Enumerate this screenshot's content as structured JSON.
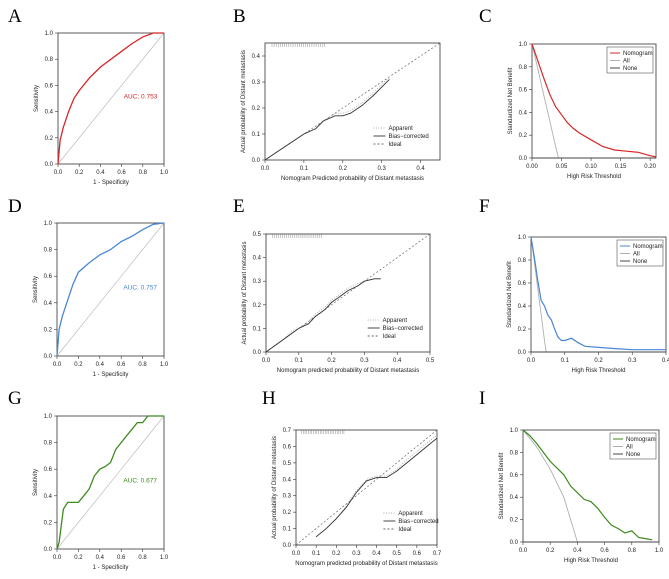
{
  "figure": {
    "panel_labels": [
      "A",
      "B",
      "C",
      "D",
      "E",
      "F",
      "G",
      "H",
      "I"
    ]
  },
  "colors": {
    "roc": [
      "#d62728",
      "#4a86d4",
      "#3c8a1e"
    ],
    "dca_model": [
      "#d62728",
      "#4a86d4",
      "#3c8a1e"
    ],
    "all": "#b0b0b0",
    "none": "#444444",
    "apparent": "#aaaaaa",
    "bias": "#333333",
    "ideal": "#666666"
  },
  "chart_data": [
    {
      "panel": "A",
      "type": "line",
      "subtype": "roc",
      "xlabel": "1 - Specificity",
      "ylabel": "Sensitivity",
      "xlim": [
        0,
        1
      ],
      "ylim": [
        0,
        1
      ],
      "xticks": [
        "0.0",
        "0.2",
        "0.4",
        "0.6",
        "0.8",
        "1.0"
      ],
      "yticks": [
        "0.0",
        "0.2",
        "0.4",
        "0.6",
        "0.8",
        "1.0"
      ],
      "annotation": "AUC: 0.753",
      "series": [
        {
          "name": "ROC",
          "x": [
            0,
            0.02,
            0.05,
            0.1,
            0.15,
            0.2,
            0.3,
            0.4,
            0.5,
            0.6,
            0.7,
            0.8,
            0.9,
            1
          ],
          "y": [
            0,
            0.18,
            0.28,
            0.4,
            0.5,
            0.56,
            0.66,
            0.74,
            0.8,
            0.86,
            0.92,
            0.97,
            1,
            1
          ]
        }
      ]
    },
    {
      "panel": "B",
      "type": "line",
      "subtype": "calibration",
      "xlabel": "Nomogram Predicted probability of Distant metastasis",
      "ylabel": "Actual probability of Distant metastasis",
      "xlim": [
        0,
        0.45
      ],
      "ylim": [
        0,
        0.45
      ],
      "xticks": [
        "0.0",
        "0.1",
        "0.2",
        "0.3",
        "0.4"
      ],
      "yticks": [
        "0.0",
        "0.1",
        "0.2",
        "0.3",
        "0.4"
      ],
      "legend": [
        "Apparent",
        "Bias−corrected",
        "Ideal"
      ],
      "series": [
        {
          "name": "Apparent",
          "x": [
            0,
            0.02,
            0.05,
            0.08,
            0.1,
            0.13,
            0.15,
            0.18,
            0.2,
            0.22,
            0.25,
            0.28,
            0.3,
            0.32
          ],
          "y": [
            0,
            0.02,
            0.05,
            0.08,
            0.1,
            0.12,
            0.15,
            0.18,
            0.18,
            0.19,
            0.22,
            0.26,
            0.29,
            0.32
          ]
        },
        {
          "name": "Bias-corrected",
          "x": [
            0,
            0.02,
            0.05,
            0.08,
            0.1,
            0.13,
            0.15,
            0.18,
            0.2,
            0.22,
            0.25,
            0.28,
            0.3,
            0.32
          ],
          "y": [
            0,
            0.02,
            0.05,
            0.08,
            0.1,
            0.12,
            0.15,
            0.17,
            0.17,
            0.18,
            0.21,
            0.25,
            0.28,
            0.31
          ]
        },
        {
          "name": "Ideal",
          "x": [
            0,
            0.45
          ],
          "y": [
            0,
            0.45
          ]
        }
      ]
    },
    {
      "panel": "C",
      "type": "line",
      "subtype": "decision_curve",
      "xlabel": "High Risk Threshold",
      "ylabel": "Standardized Net Benefit",
      "xlim": [
        0,
        0.21
      ],
      "ylim": [
        0,
        1
      ],
      "xticks": [
        "0.00",
        "0.05",
        "0.10",
        "0.15",
        "0.20"
      ],
      "yticks": [
        "0.0",
        "0.2",
        "0.4",
        "0.6",
        "0.8",
        "1.0"
      ],
      "legend": [
        "Nomogram",
        "All",
        "None"
      ],
      "series": [
        {
          "name": "Nomogram",
          "x": [
            0,
            0.01,
            0.02,
            0.03,
            0.04,
            0.05,
            0.06,
            0.07,
            0.08,
            0.1,
            0.12,
            0.14,
            0.16,
            0.18,
            0.2,
            0.21
          ],
          "y": [
            1,
            0.85,
            0.7,
            0.56,
            0.45,
            0.38,
            0.31,
            0.26,
            0.22,
            0.16,
            0.1,
            0.07,
            0.06,
            0.05,
            0.02,
            0.01
          ]
        },
        {
          "name": "All",
          "x": [
            0,
            0.01,
            0.02,
            0.03,
            0.04,
            0.045
          ],
          "y": [
            1,
            0.78,
            0.55,
            0.33,
            0.1,
            0
          ]
        },
        {
          "name": "None",
          "x": [
            0,
            0.21
          ],
          "y": [
            0,
            0
          ]
        }
      ]
    },
    {
      "panel": "D",
      "type": "line",
      "subtype": "roc",
      "xlabel": "1 - Specificity",
      "ylabel": "Sensitivity",
      "xlim": [
        0,
        1
      ],
      "ylim": [
        0,
        1
      ],
      "xticks": [
        "0.0",
        "0.2",
        "0.4",
        "0.6",
        "0.8",
        "1.0"
      ],
      "yticks": [
        "0.0",
        "0.2",
        "0.4",
        "0.6",
        "0.8",
        "1.0"
      ],
      "annotation": "AUC: 0.757",
      "series": [
        {
          "name": "ROC",
          "x": [
            0,
            0.02,
            0.05,
            0.1,
            0.15,
            0.2,
            0.3,
            0.4,
            0.5,
            0.6,
            0.7,
            0.8,
            0.9,
            1
          ],
          "y": [
            0,
            0.2,
            0.3,
            0.42,
            0.54,
            0.63,
            0.7,
            0.76,
            0.8,
            0.86,
            0.9,
            0.95,
            0.99,
            1
          ]
        }
      ]
    },
    {
      "panel": "E",
      "type": "line",
      "subtype": "calibration",
      "xlabel": "Nomogram predicted probability of Distant metastasis",
      "ylabel": "Actual probability of Distant metastasis",
      "xlim": [
        0,
        0.5
      ],
      "ylim": [
        0,
        0.5
      ],
      "xticks": [
        "0.0",
        "0.1",
        "0.2",
        "0.3",
        "0.4",
        "0.5"
      ],
      "yticks": [
        "0.0",
        "0.1",
        "0.2",
        "0.3",
        "0.4",
        "0.5"
      ],
      "legend": [
        "Apparent",
        "Bias−corrected",
        "Ideal"
      ],
      "series": [
        {
          "name": "Apparent",
          "x": [
            0,
            0.02,
            0.05,
            0.08,
            0.1,
            0.13,
            0.15,
            0.18,
            0.2,
            0.22,
            0.25,
            0.28,
            0.3,
            0.33,
            0.35
          ],
          "y": [
            0,
            0.02,
            0.05,
            0.09,
            0.1,
            0.13,
            0.16,
            0.19,
            0.22,
            0.24,
            0.27,
            0.29,
            0.3,
            0.31,
            0.31
          ]
        },
        {
          "name": "Bias-corrected",
          "x": [
            0,
            0.02,
            0.05,
            0.08,
            0.1,
            0.13,
            0.15,
            0.18,
            0.2,
            0.22,
            0.25,
            0.28,
            0.3,
            0.33,
            0.35
          ],
          "y": [
            0,
            0.02,
            0.05,
            0.08,
            0.1,
            0.12,
            0.15,
            0.18,
            0.21,
            0.23,
            0.26,
            0.28,
            0.3,
            0.31,
            0.31
          ]
        },
        {
          "name": "Ideal",
          "x": [
            0,
            0.5
          ],
          "y": [
            0,
            0.5
          ]
        }
      ]
    },
    {
      "panel": "F",
      "type": "line",
      "subtype": "decision_curve",
      "xlabel": "High Risk Threshold",
      "ylabel": "Standardized Net Benefit",
      "xlim": [
        0,
        0.4
      ],
      "ylim": [
        0,
        1
      ],
      "xticks": [
        "0.0",
        "0.1",
        "0.2",
        "0.3",
        "0.4"
      ],
      "yticks": [
        "0.0",
        "0.2",
        "0.4",
        "0.6",
        "0.8",
        "1.0"
      ],
      "legend": [
        "Nomogram",
        "All",
        "None"
      ],
      "series": [
        {
          "name": "Nomogram",
          "x": [
            0,
            0.01,
            0.02,
            0.03,
            0.04,
            0.05,
            0.06,
            0.07,
            0.08,
            0.09,
            0.1,
            0.12,
            0.14,
            0.16,
            0.2,
            0.25,
            0.3,
            0.35,
            0.4
          ],
          "y": [
            1,
            0.82,
            0.62,
            0.45,
            0.4,
            0.32,
            0.28,
            0.2,
            0.13,
            0.1,
            0.1,
            0.12,
            0.08,
            0.05,
            0.04,
            0.03,
            0.02,
            0.02,
            0.02
          ]
        },
        {
          "name": "All",
          "x": [
            0,
            0.01,
            0.02,
            0.03,
            0.04,
            0.045
          ],
          "y": [
            1,
            0.78,
            0.55,
            0.33,
            0.1,
            0
          ]
        },
        {
          "name": "None",
          "x": [
            0,
            0.4
          ],
          "y": [
            0,
            0
          ]
        }
      ]
    },
    {
      "panel": "G",
      "type": "line",
      "subtype": "roc",
      "xlabel": "1 - Specificity",
      "ylabel": "Sensitivity",
      "xlim": [
        0,
        1
      ],
      "ylim": [
        0,
        1
      ],
      "xticks": [
        "0.0",
        "0.2",
        "0.4",
        "0.6",
        "0.8",
        "1.0"
      ],
      "yticks": [
        "0.0",
        "0.2",
        "0.4",
        "0.6",
        "0.8",
        "1.0"
      ],
      "annotation": "AUC: 0.677",
      "series": [
        {
          "name": "ROC",
          "x": [
            0,
            0.02,
            0.04,
            0.06,
            0.1,
            0.2,
            0.25,
            0.3,
            0.35,
            0.4,
            0.45,
            0.5,
            0.55,
            0.6,
            0.65,
            0.7,
            0.75,
            0.8,
            0.85,
            0.9,
            1
          ],
          "y": [
            0,
            0.05,
            0.18,
            0.3,
            0.35,
            0.35,
            0.4,
            0.45,
            0.55,
            0.6,
            0.62,
            0.65,
            0.75,
            0.8,
            0.85,
            0.9,
            0.95,
            0.95,
            1,
            1,
            1
          ]
        }
      ]
    },
    {
      "panel": "H",
      "type": "line",
      "subtype": "calibration",
      "xlabel": "Nomogram predicted probability of Distant metastasis",
      "ylabel": "Actual probability of Distant metastasis",
      "xlim": [
        0,
        0.7
      ],
      "ylim": [
        0,
        0.7
      ],
      "xticks": [
        "0.0",
        "0.1",
        "0.2",
        "0.3",
        "0.4",
        "0.5",
        "0.6",
        "0.7"
      ],
      "yticks": [
        "0.0",
        "0.1",
        "0.2",
        "0.3",
        "0.4",
        "0.5",
        "0.6",
        "0.7"
      ],
      "legend": [
        "Apparent",
        "Bias−corrected",
        "Ideal"
      ],
      "series": [
        {
          "name": "Apparent",
          "x": [
            0.1,
            0.15,
            0.2,
            0.25,
            0.3,
            0.35,
            0.4,
            0.45,
            0.5,
            0.55,
            0.6,
            0.65,
            0.7
          ],
          "y": [
            0.05,
            0.1,
            0.16,
            0.24,
            0.33,
            0.4,
            0.42,
            0.42,
            0.46,
            0.52,
            0.57,
            0.62,
            0.67
          ]
        },
        {
          "name": "Bias-corrected",
          "x": [
            0.1,
            0.15,
            0.2,
            0.25,
            0.3,
            0.35,
            0.4,
            0.45,
            0.5,
            0.55,
            0.6,
            0.65,
            0.7
          ],
          "y": [
            0.05,
            0.1,
            0.16,
            0.23,
            0.32,
            0.39,
            0.41,
            0.41,
            0.45,
            0.5,
            0.55,
            0.6,
            0.65
          ]
        },
        {
          "name": "Ideal",
          "x": [
            0,
            0.7
          ],
          "y": [
            0,
            0.7
          ]
        }
      ]
    },
    {
      "panel": "I",
      "type": "line",
      "subtype": "decision_curve",
      "xlabel": "High Risk Threshold",
      "ylabel": "Standardized Net Benefit",
      "xlim": [
        0,
        1
      ],
      "ylim": [
        0,
        1
      ],
      "xticks": [
        "0.0",
        "0.2",
        "0.4",
        "0.6",
        "0.8",
        "1.0"
      ],
      "yticks": [
        "0.0",
        "0.2",
        "0.4",
        "0.6",
        "0.8",
        "1.0"
      ],
      "legend": [
        "Nomogram",
        "All",
        "None"
      ],
      "series": [
        {
          "name": "Nomogram",
          "x": [
            0,
            0.05,
            0.1,
            0.15,
            0.2,
            0.25,
            0.3,
            0.35,
            0.4,
            0.45,
            0.5,
            0.55,
            0.6,
            0.65,
            0.7,
            0.75,
            0.8,
            0.85,
            0.9,
            0.95
          ],
          "y": [
            1,
            0.95,
            0.88,
            0.8,
            0.72,
            0.66,
            0.6,
            0.5,
            0.44,
            0.38,
            0.36,
            0.3,
            0.22,
            0.15,
            0.12,
            0.08,
            0.1,
            0.04,
            0.03,
            0.02
          ]
        },
        {
          "name": "All",
          "x": [
            0,
            0.1,
            0.2,
            0.3,
            0.35,
            0.4
          ],
          "y": [
            1,
            0.85,
            0.65,
            0.4,
            0.2,
            0
          ]
        },
        {
          "name": "None",
          "x": [
            0,
            1
          ],
          "y": [
            0,
            0
          ]
        }
      ]
    }
  ]
}
